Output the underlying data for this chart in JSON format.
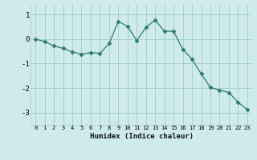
{
  "x": [
    0,
    1,
    2,
    3,
    4,
    5,
    6,
    7,
    8,
    9,
    10,
    11,
    12,
    13,
    14,
    15,
    16,
    17,
    18,
    19,
    20,
    21,
    22,
    23
  ],
  "y": [
    0.0,
    -0.1,
    -0.28,
    -0.38,
    -0.52,
    -0.62,
    -0.55,
    -0.58,
    -0.18,
    0.72,
    0.52,
    -0.06,
    0.48,
    0.78,
    0.32,
    0.32,
    -0.42,
    -0.82,
    -1.42,
    -1.98,
    -2.08,
    -2.18,
    -2.58,
    -2.88
  ],
  "line_color": "#2d7d6b",
  "marker": "D",
  "marker_size": 2.5,
  "bg_color": "#ceeaea",
  "grid_color": "#a8d0d0",
  "xlabel": "Humidex (Indice chaleur)",
  "xlim": [
    -0.5,
    23.5
  ],
  "ylim": [
    -3.5,
    1.4
  ],
  "yticks": [
    -3,
    -2,
    -1,
    0,
    1
  ],
  "xticks": [
    0,
    1,
    2,
    3,
    4,
    5,
    6,
    7,
    8,
    9,
    10,
    11,
    12,
    13,
    14,
    15,
    16,
    17,
    18,
    19,
    20,
    21,
    22,
    23
  ]
}
